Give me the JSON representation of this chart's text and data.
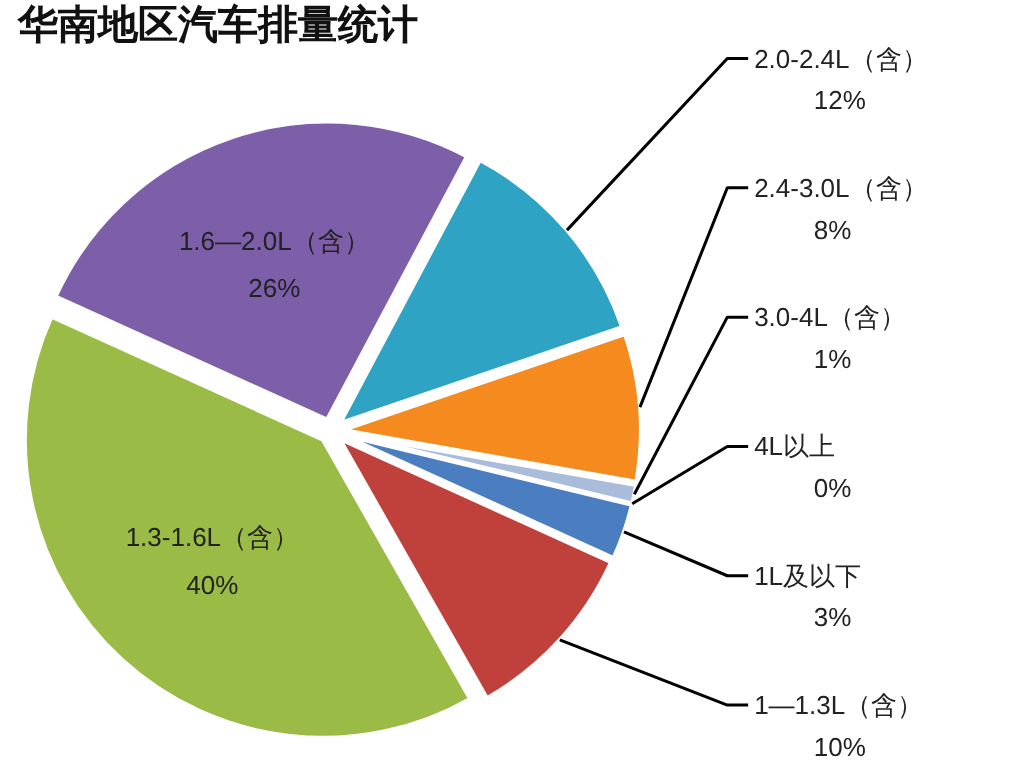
{
  "chart_data": {
    "type": "pie",
    "title": "华南地区汽车排量统计",
    "categories": [
      "2.0-2.4L（含）",
      "2.4-3.0L（含）",
      "3.0-4L（含）",
      "4L以上",
      "1L及以下",
      "1—1.3L（含）",
      "1.3-1.6L（含）",
      "1.6—2.0L（含）"
    ],
    "values": [
      12,
      8,
      1,
      0,
      3,
      10,
      40,
      26
    ],
    "value_labels": [
      "12%",
      "8%",
      "1%",
      "0%",
      "3%",
      "10%",
      "40%",
      "26%"
    ],
    "colors": [
      "#2ea3c4",
      "#f58a1f",
      "#a9bcdc",
      "#8c8c8c",
      "#4a7ec0",
      "#c0403c",
      "#9bbb47",
      "#7d5ea8"
    ]
  }
}
